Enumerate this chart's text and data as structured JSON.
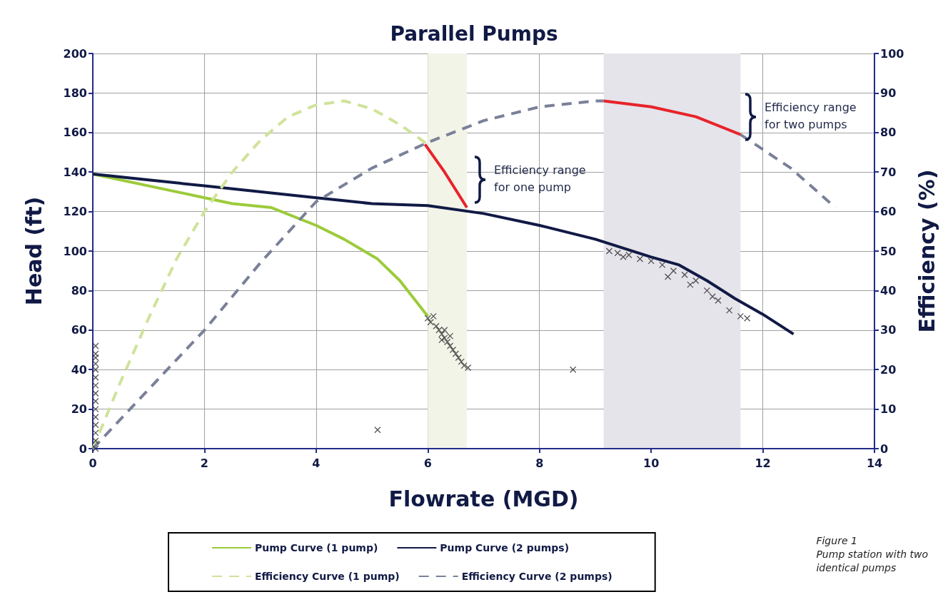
{
  "chart_data": {
    "type": "line",
    "title": "Parallel Pumps",
    "xlabel": "Flowrate (MGD)",
    "ylabel": "Head (ft)",
    "y2label": "Efficiency (%)",
    "xlim": [
      0,
      14
    ],
    "xticks": [
      0,
      2,
      4,
      6,
      8,
      10,
      12,
      14
    ],
    "ylim": [
      0,
      200
    ],
    "yticks": [
      0,
      20,
      40,
      60,
      80,
      100,
      120,
      140,
      160,
      180,
      200
    ],
    "y2lim": [
      0,
      100
    ],
    "y2ticks": [
      0,
      10,
      20,
      30,
      40,
      50,
      60,
      70,
      80,
      90,
      100
    ],
    "grid": true,
    "legend": "bottom",
    "bands": [
      {
        "axis": "x",
        "from": 6,
        "to": 6.7,
        "color": "#f3f4e8"
      },
      {
        "axis": "x",
        "from": 9.15,
        "to": 11.6,
        "color": "#e4e4ea"
      }
    ],
    "annotations": [
      "Efficiency range\nfor one pump",
      "Efficiency range\nfor two pumps",
      "Figure 1\nPump station with two\nidentical pumps"
    ],
    "series": [
      {
        "name": "Pump Curve (1 pump)",
        "color": "#9ccb3b",
        "line_style": "solid",
        "marker": "none",
        "x": [
          0,
          1,
          2,
          2.5,
          3.2,
          4,
          4.5,
          5.1,
          5.5,
          6
        ],
        "values": [
          139,
          133,
          127,
          124,
          122,
          113,
          106,
          96,
          85,
          67
        ]
      },
      {
        "name": "Pump Curve (2 pumps)",
        "color": "#111a45",
        "line_style": "solid",
        "marker": "none",
        "x": [
          0,
          2,
          4,
          5,
          6,
          7,
          8,
          9,
          10,
          10.5,
          11,
          11.5,
          12,
          12.55
        ],
        "values": [
          139,
          133,
          127,
          124,
          123,
          119,
          113,
          106,
          97,
          93,
          85,
          76,
          68,
          58
        ]
      },
      {
        "name": "Efficiency Curve (1 pump)",
        "axis": "y2",
        "color": "#cfe39a",
        "line_style": "dashed",
        "marker": "none",
        "x": [
          0,
          0.5,
          1,
          1.5,
          2,
          2.5,
          3,
          3.5,
          4,
          4.5,
          5,
          5.5,
          6
        ],
        "values": [
          0,
          17,
          33,
          48,
          60,
          70,
          78,
          84,
          87,
          88,
          86,
          82,
          77
        ]
      },
      {
        "name": "Efficiency Curve (2 pumps)",
        "axis": "y2",
        "color": "#7a8099",
        "line_style": "dashed",
        "marker": "none",
        "x": [
          0,
          1,
          2,
          3,
          4,
          5,
          6,
          7,
          8,
          9,
          9.15,
          10,
          10.8,
          11.6,
          12.5,
          13.3
        ],
        "values": [
          0,
          15,
          30,
          47,
          62.5,
          71,
          77.5,
          83,
          86.5,
          88,
          88,
          null,
          null,
          79.5,
          71,
          61
        ]
      },
      {
        "axis": "y2",
        "color": "#e8232a",
        "line_style": "solid",
        "marker": "none",
        "x": [
          5.95,
          6.3,
          6.7
        ],
        "values": [
          77,
          70,
          61
        ]
      },
      {
        "axis": "y2",
        "color": "#e8232a",
        "line_style": "solid",
        "marker": "none",
        "x": [
          9.15,
          10,
          10.8,
          11.6
        ],
        "values": [
          88,
          86.5,
          84,
          79.5
        ]
      },
      {
        "type": "scatter",
        "color": "#2b2b2b",
        "marker": "cross",
        "x": [
          0.05,
          0.05,
          0.05,
          0.05,
          0.05,
          0.05,
          0.05,
          0.05,
          0.05,
          0.05,
          0.05,
          0.05,
          0.05,
          0.05,
          0.05,
          5.1,
          8.6,
          6.0,
          6.05,
          6.1,
          6.15,
          6.2,
          6.25,
          6.3,
          6.35,
          6.4,
          6.45,
          6.5,
          6.55,
          6.6,
          6.65,
          6.72,
          6.3,
          6.25,
          6.4,
          9.25,
          9.4,
          9.5,
          9.6,
          9.8,
          10.0,
          10.2,
          10.4,
          10.6,
          10.8,
          11.0,
          11.2,
          11.4,
          11.6,
          11.72,
          10.3,
          10.7,
          11.1
        ],
        "values": [
          0,
          4,
          8,
          12,
          16,
          20,
          24,
          28,
          32,
          36,
          40,
          43,
          46,
          48,
          52,
          9.5,
          40,
          66,
          64,
          67,
          62,
          60,
          58,
          56,
          54,
          52,
          50,
          48,
          46,
          44,
          42,
          41,
          60,
          55,
          57,
          100,
          99,
          97,
          98,
          96,
          95,
          93,
          90,
          88,
          85,
          80,
          75,
          70,
          67,
          66,
          87,
          83,
          77
        ]
      }
    ]
  }
}
